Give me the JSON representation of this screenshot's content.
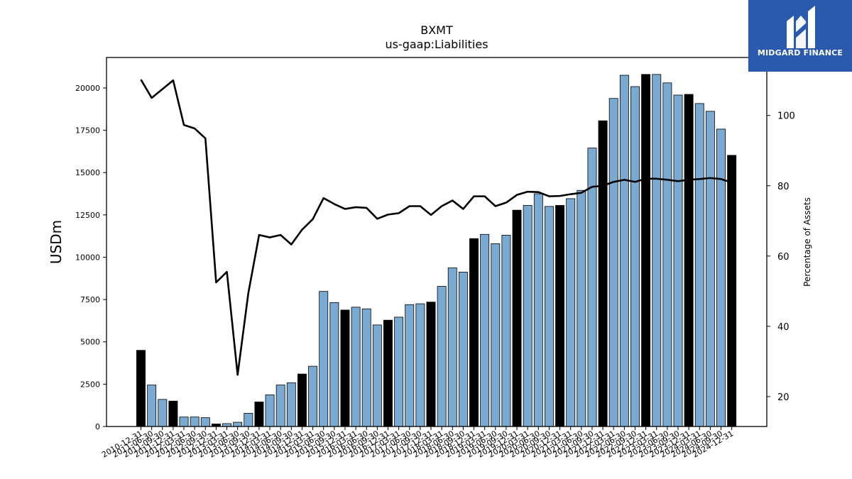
{
  "brand": {
    "name": "MIDGARD FINANCE",
    "icon": "midgard-logo-icon",
    "color": "#2a5aad"
  },
  "chart_data": {
    "type": "bar",
    "title": "BXMT",
    "subtitle": "us-gaap:Liabilities",
    "ylabel": "USDm",
    "y2label": "Percentage of Assets",
    "ylim": [
      0,
      21800
    ],
    "y2lim": [
      11.5,
      116.5
    ],
    "yticks": [
      0,
      2500,
      5000,
      7500,
      10000,
      12500,
      15000,
      17500,
      20000
    ],
    "y2ticks": [
      20,
      40,
      60,
      80,
      100
    ],
    "colors": {
      "bar_default": "#7aaad2",
      "bar_highlight": "#000000",
      "line": "#000000"
    },
    "categories": [
      "2010-12-31",
      "2011-06-30",
      "2011-09-30",
      "2011-12-31",
      "2012-03-31",
      "2012-06-30",
      "2012-09-30",
      "2012-12-31",
      "2013-03-31",
      "2013-06-30",
      "2013-09-30",
      "2013-12-31",
      "2014-03-31",
      "2014-06-30",
      "2014-09-30",
      "2014-12-31",
      "2015-03-31",
      "2015-06-30",
      "2015-09-30",
      "2015-12-31",
      "2016-03-31",
      "2016-06-30",
      "2016-09-30",
      "2016-12-31",
      "2017-03-31",
      "2017-06-30",
      "2017-09-30",
      "2017-12-31",
      "2018-03-31",
      "2018-06-30",
      "2018-09-30",
      "2018-12-31",
      "2019-03-31",
      "2019-06-30",
      "2019-09-30",
      "2019-12-31",
      "2020-03-31",
      "2020-06-30",
      "2020-09-30",
      "2020-12-31",
      "2021-03-31",
      "2021-06-30",
      "2021-09-30",
      "2021-12-31",
      "2022-03-31",
      "2022-06-30",
      "2022-09-30",
      "2022-12-31",
      "2023-03-31",
      "2023-06-30",
      "2023-09-30",
      "2023-12-31",
      "2024-03-31",
      "2024-06-30",
      "2024-09-30",
      "2024-12-31"
    ],
    "series": [
      {
        "type": "bar",
        "values": [
          4500,
          2450,
          1600,
          1500,
          560,
          560,
          520,
          150,
          170,
          250,
          780,
          1450,
          1870,
          2450,
          2580,
          3100,
          3560,
          7980,
          7320,
          6880,
          7050,
          6950,
          6000,
          6280,
          6460,
          7200,
          7250,
          7350,
          8280,
          9370,
          9120,
          11100,
          11350,
          10800,
          11300,
          12780,
          13060,
          13750,
          13000,
          13060,
          13460,
          13950,
          16450,
          18060,
          19380,
          20750,
          20080,
          20800,
          20800,
          20300,
          19580,
          19620,
          19080,
          18620,
          17570,
          16020
        ],
        "highlight": [
          true,
          false,
          false,
          true,
          false,
          false,
          false,
          true,
          false,
          false,
          false,
          true,
          false,
          false,
          false,
          true,
          false,
          false,
          false,
          true,
          false,
          false,
          false,
          true,
          false,
          false,
          false,
          true,
          false,
          false,
          false,
          true,
          false,
          false,
          false,
          true,
          false,
          false,
          false,
          true,
          false,
          false,
          false,
          true,
          false,
          false,
          false,
          true,
          false,
          false,
          false,
          true,
          false,
          false,
          false,
          true
        ]
      },
      {
        "type": "line",
        "axis": "right",
        "values": [
          110.2,
          105,
          107.5,
          110,
          97.3,
          96.3,
          93.5,
          52.5,
          55.5,
          26.2,
          49.5,
          66,
          65.3,
          66,
          63.3,
          67.5,
          70.5,
          76.5,
          74.8,
          73.4,
          73.9,
          73.7,
          70.6,
          71.8,
          72.2,
          74.2,
          74.2,
          71.7,
          74.2,
          75.8,
          73.4,
          77,
          77,
          74.2,
          75.2,
          77.4,
          78.3,
          78.2,
          77,
          77.1,
          77.6,
          78,
          79.7,
          80,
          81.1,
          81.7,
          81.1,
          82,
          82,
          81.7,
          81.3,
          81.7,
          81.9,
          82.2,
          81.9,
          80.9
        ]
      }
    ]
  }
}
